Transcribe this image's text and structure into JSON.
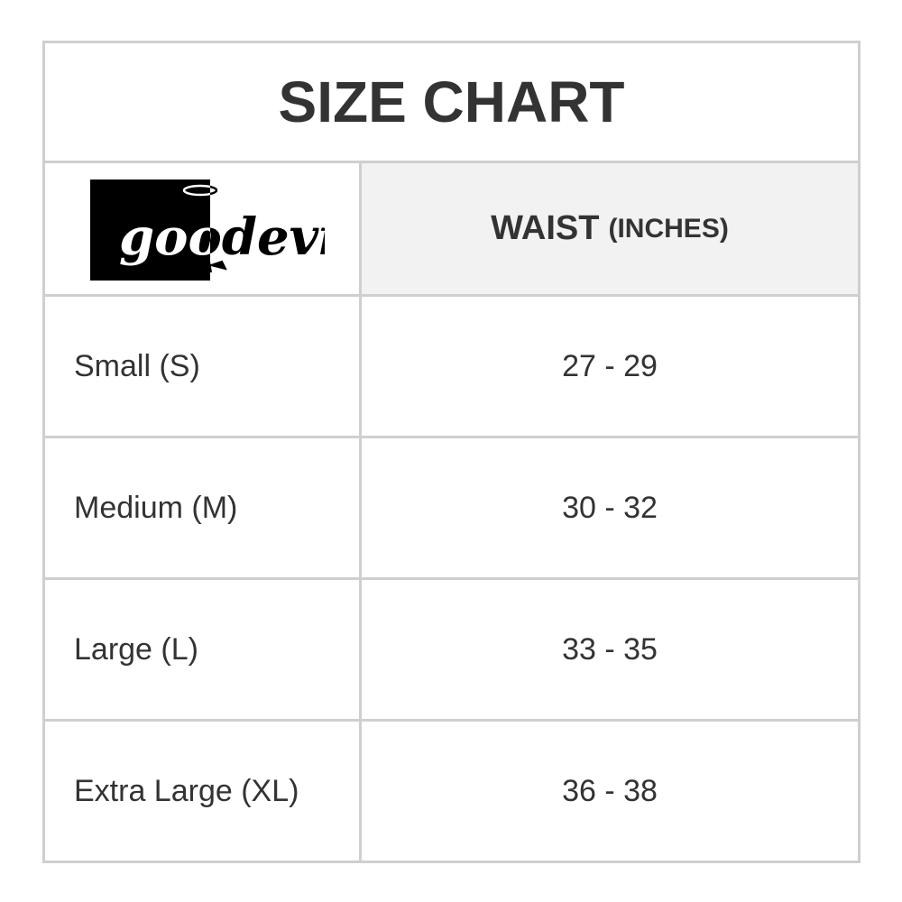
{
  "title": "SIZE CHART",
  "brand": "goodevil",
  "header": {
    "measure": "WAIST",
    "unit": "(INCHES)"
  },
  "rows": [
    {
      "size": "Small (S)",
      "waist": "27 - 29"
    },
    {
      "size": "Medium (M)",
      "waist": "30 - 32"
    },
    {
      "size": "Large (L)",
      "waist": "33 - 35"
    },
    {
      "size": "Extra Large (XL)",
      "waist": "36 - 38"
    }
  ]
}
